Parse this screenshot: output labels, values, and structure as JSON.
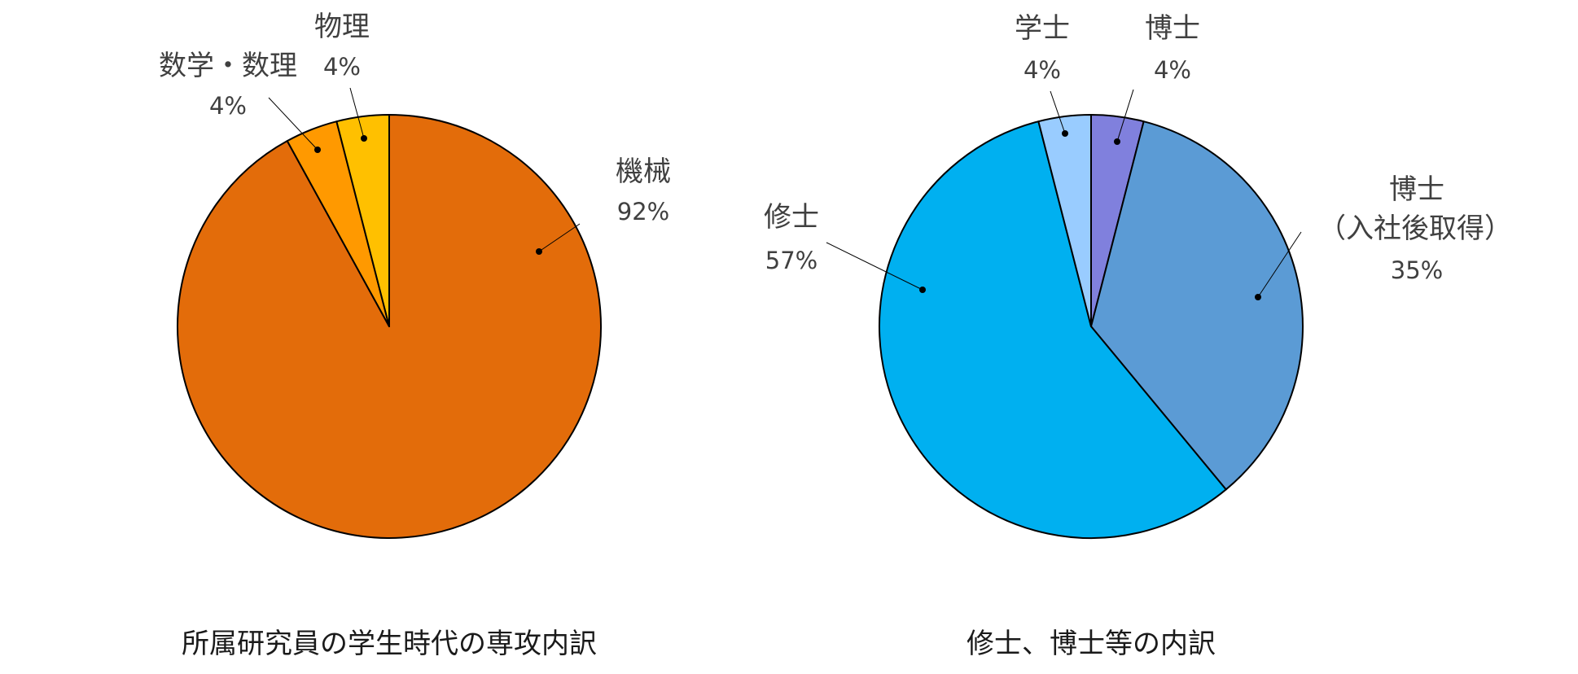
{
  "chart_data": [
    {
      "type": "pie",
      "caption": "所属研究員の学生時代の専攻内訳",
      "slices": [
        {
          "label": "機械",
          "value": 92,
          "value_label": "92%",
          "color": "#E36C0A"
        },
        {
          "label": "数学・数理",
          "value": 4,
          "value_label": "4%",
          "color": "#FF9900"
        },
        {
          "label": "物理",
          "value": 4,
          "value_label": "4%",
          "color": "#FFC000"
        }
      ]
    },
    {
      "type": "pie",
      "caption": "修士、博士等の内訳",
      "slices": [
        {
          "label": "博士",
          "value": 4,
          "value_label": "4%",
          "color": "#8080DD"
        },
        {
          "label": "博士",
          "label_line2": "（入社後取得）",
          "value": 35,
          "value_label": "35%",
          "color": "#5B9BD5"
        },
        {
          "label": "修士",
          "value": 57,
          "value_label": "57%",
          "color": "#00B0F0"
        },
        {
          "label": "学士",
          "value": 4,
          "value_label": "4%",
          "color": "#99CCFF"
        }
      ]
    }
  ]
}
